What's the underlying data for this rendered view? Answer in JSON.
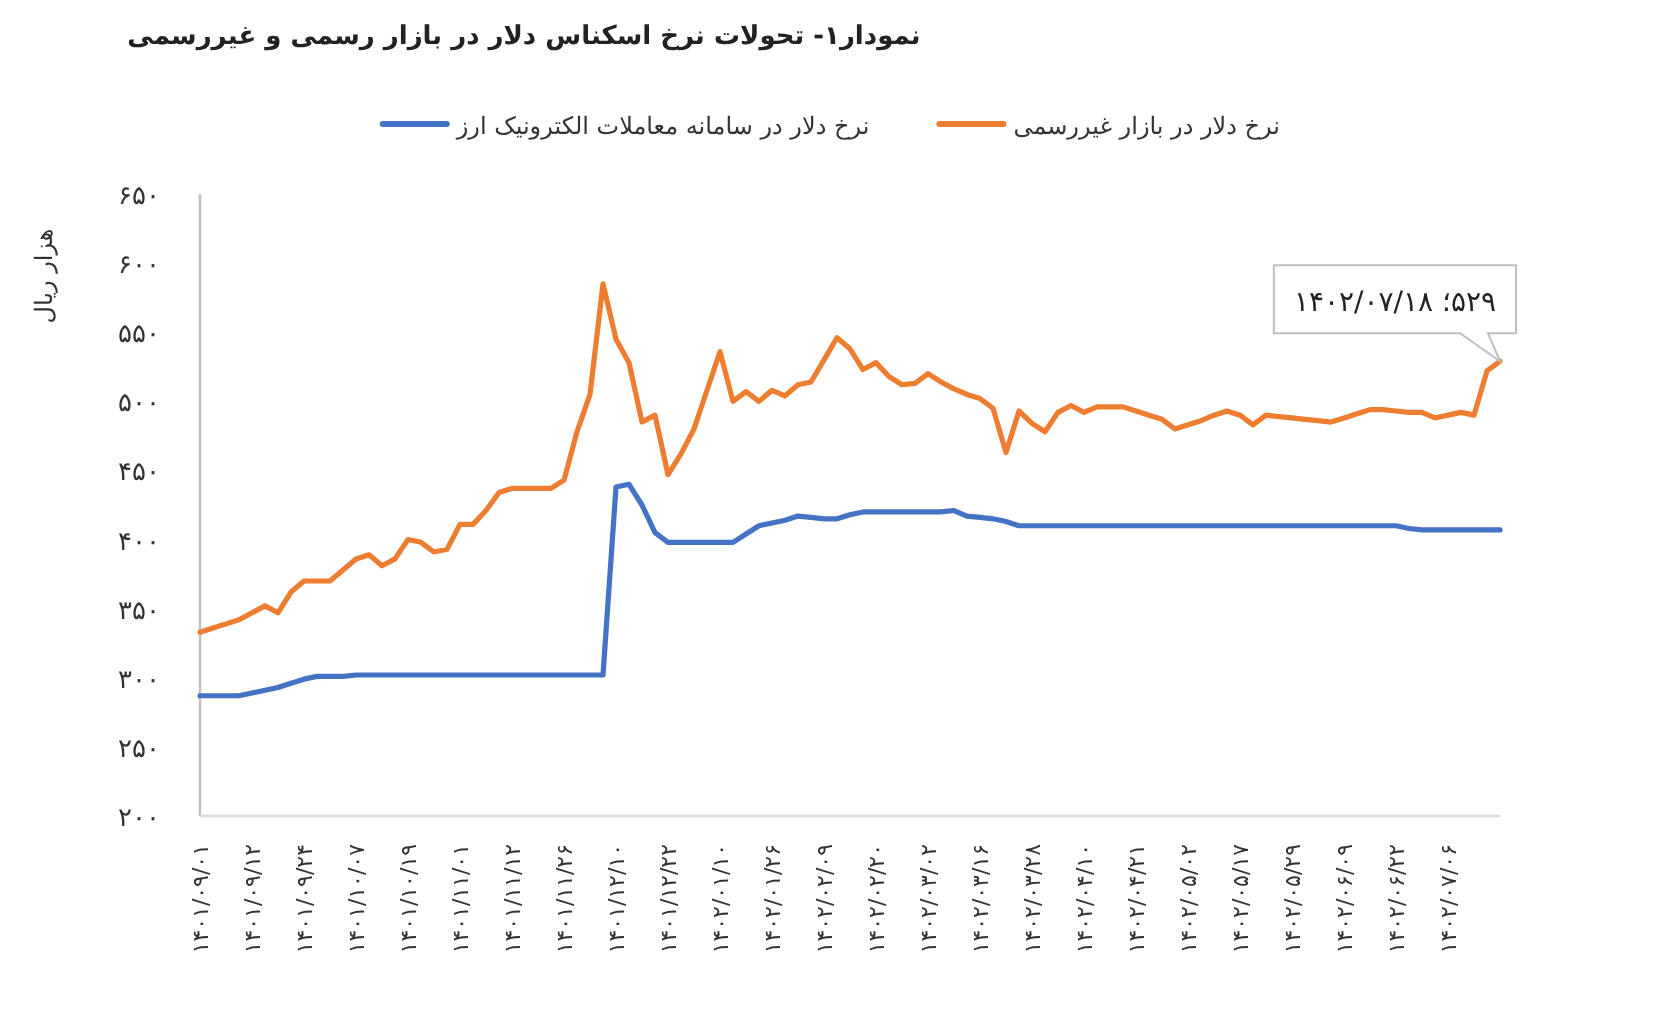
{
  "chart_data": {
    "type": "line",
    "title": "نمودار۱- تحولات نرخ اسکناس دلار در بازار رسمی و غیررسمی",
    "ylabel": "هزار ریال",
    "legend": "top",
    "ylim": [
      200,
      650
    ],
    "yticks": [
      {
        "value": 200,
        "label": "۲۰۰"
      },
      {
        "value": 250,
        "label": "۲۵۰"
      },
      {
        "value": 300,
        "label": "۳۰۰"
      },
      {
        "value": 350,
        "label": "۳۵۰"
      },
      {
        "value": 400,
        "label": "۴۰۰"
      },
      {
        "value": 450,
        "label": "۴۵۰"
      },
      {
        "value": 500,
        "label": "۵۰۰"
      },
      {
        "value": 550,
        "label": "۵۵۰"
      },
      {
        "value": 600,
        "label": "۶۰۰"
      },
      {
        "value": 650,
        "label": "۶۵۰"
      }
    ],
    "categories": [
      "۱۴۰۱/۰۹/۰۱",
      null,
      null,
      null,
      "۱۴۰۱/۰۹/۱۲",
      null,
      null,
      null,
      "۱۴۰۱/۰۹/۲۴",
      null,
      null,
      null,
      "۱۴۰۱/۱۰/۰۷",
      null,
      null,
      null,
      "۱۴۰۱/۱۰/۱۹",
      null,
      null,
      null,
      "۱۴۰۱/۱۱/۰۱",
      null,
      null,
      null,
      "۱۴۰۱/۱۱/۱۲",
      null,
      null,
      null,
      "۱۴۰۱/۱۱/۲۶",
      null,
      null,
      null,
      "۱۴۰۱/۱۲/۱۰",
      null,
      null,
      null,
      "۱۴۰۱/۱۲/۲۲",
      null,
      null,
      null,
      "۱۴۰۲/۰۱/۱۰",
      null,
      null,
      null,
      "۱۴۰۲/۰۱/۲۶",
      null,
      null,
      null,
      "۱۴۰۲/۰۲/۰۹",
      null,
      null,
      null,
      "۱۴۰۲/۰۲/۲۰",
      null,
      null,
      null,
      "۱۴۰۲/۰۳/۰۲",
      null,
      null,
      null,
      "۱۴۰۲/۰۳/۱۶",
      null,
      null,
      null,
      "۱۴۰۲/۰۳/۲۸",
      null,
      null,
      null,
      "۱۴۰۲/۰۴/۱۰",
      null,
      null,
      null,
      "۱۴۰۲/۰۴/۲۱",
      null,
      null,
      null,
      "۱۴۰۲/۰۵/۰۲",
      null,
      null,
      null,
      "۱۴۰۲/۰۵/۱۷",
      null,
      null,
      null,
      "۱۴۰۲/۰۵/۲۹",
      null,
      null,
      null,
      "۱۴۰۲/۰۶/۰۹",
      null,
      null,
      null,
      "۱۴۰۲/۰۶/۲۲",
      null,
      null,
      null,
      "۱۴۰۲/۰۷/۰۶",
      null,
      null,
      null,
      null
    ],
    "series": [
      {
        "name": "نرخ دلار در بازار غیررسمی",
        "color": "#ed7d31",
        "values": [
          333,
          336,
          339,
          342,
          347,
          352,
          347,
          362,
          370,
          370,
          370,
          378,
          386,
          389,
          381,
          386,
          400,
          398,
          391,
          393,
          411,
          411,
          421,
          434,
          437,
          437,
          437,
          437,
          443,
          478,
          505,
          585,
          545,
          528,
          485,
          490,
          447,
          462,
          480,
          508,
          536,
          500,
          507,
          500,
          508,
          504,
          512,
          514,
          530,
          546,
          538,
          523,
          528,
          518,
          512,
          513,
          520,
          514,
          509,
          505,
          502,
          495,
          463,
          493,
          484,
          478,
          492,
          497,
          492,
          496,
          496,
          496,
          493,
          490,
          487,
          480,
          483,
          486,
          490,
          493,
          490,
          483,
          490,
          489,
          488,
          487,
          486,
          485,
          488,
          491,
          494,
          494,
          493,
          492,
          492,
          488,
          490,
          492,
          490,
          522,
          529
        ]
      },
      {
        "name": "نرخ دلار در سامانه معاملات الکترونیک ارز",
        "color": "#4472c4",
        "values": [
          287,
          287,
          287,
          287,
          289,
          291,
          293,
          296,
          299,
          301,
          301,
          301,
          302,
          302,
          302,
          302,
          302,
          302,
          302,
          302,
          302,
          302,
          302,
          302,
          302,
          302,
          302,
          302,
          302,
          302,
          302,
          302,
          438,
          440,
          425,
          405,
          398,
          398,
          398,
          398,
          398,
          398,
          404,
          410,
          412,
          414,
          417,
          416,
          415,
          415,
          418,
          420,
          420,
          420,
          420,
          420,
          420,
          420,
          421,
          417,
          416,
          415,
          413,
          410,
          410,
          410,
          410,
          410,
          410,
          410,
          410,
          410,
          410,
          410,
          410,
          410,
          410,
          410,
          410,
          410,
          410,
          410,
          410,
          410,
          410,
          410,
          410,
          410,
          410,
          410,
          410,
          410,
          410,
          408,
          407,
          407,
          407,
          407,
          407,
          407,
          407
        ]
      }
    ],
    "annotations": [
      "۵۲۹؛ ۱۴۰۲/۰۷/۱۸"
    ]
  }
}
